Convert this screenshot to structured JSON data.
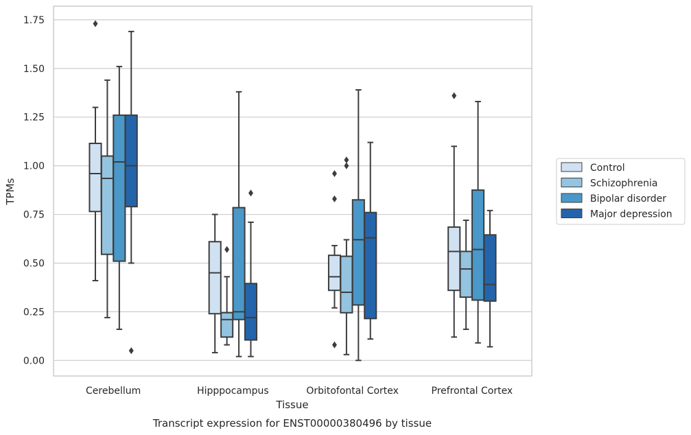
{
  "chart_data": {
    "type": "box",
    "xlabel": "Tissue",
    "ylabel": "TPMs",
    "caption": "Transcript expression for ENST00000380496 by tissue",
    "ylim": [
      -0.08,
      1.82
    ],
    "yticks": [
      0.0,
      0.25,
      0.5,
      0.75,
      1.0,
      1.25,
      1.5,
      1.75
    ],
    "ytick_labels": [
      "0.00",
      "0.25",
      "0.50",
      "0.75",
      "1.00",
      "1.25",
      "1.50",
      "1.75"
    ],
    "grid": "horizontal",
    "legend_position": "right",
    "categories": [
      "Cerebellum",
      "Hipppocampus",
      "Orbitofontal Cortex",
      "Prefrontal Cortex"
    ],
    "series": [
      {
        "name": "Control",
        "color": "#d0e1f2",
        "boxes": [
          {
            "whislo": 0.41,
            "q1": 0.765,
            "med": 0.96,
            "q3": 1.115,
            "whishi": 1.3,
            "fliers": [
              1.73
            ]
          },
          {
            "whislo": 0.04,
            "q1": 0.24,
            "med": 0.45,
            "q3": 0.61,
            "whishi": 0.75,
            "fliers": []
          },
          {
            "whislo": 0.27,
            "q1": 0.36,
            "med": 0.43,
            "q3": 0.54,
            "whishi": 0.59,
            "fliers": [
              0.96,
              0.83,
              0.08
            ]
          },
          {
            "whislo": 0.12,
            "q1": 0.36,
            "med": 0.56,
            "q3": 0.685,
            "whishi": 1.1,
            "fliers": [
              1.36
            ]
          }
        ]
      },
      {
        "name": "Schizophrenia",
        "color": "#94c4df",
        "boxes": [
          {
            "whislo": 0.22,
            "q1": 0.545,
            "med": 0.935,
            "q3": 1.05,
            "whishi": 1.44,
            "fliers": []
          },
          {
            "whislo": 0.08,
            "q1": 0.12,
            "med": 0.21,
            "q3": 0.245,
            "whishi": 0.43,
            "fliers": [
              0.57
            ]
          },
          {
            "whislo": 0.03,
            "q1": 0.245,
            "med": 0.35,
            "q3": 0.535,
            "whishi": 0.62,
            "fliers": [
              1.03,
              1.0
            ]
          },
          {
            "whislo": 0.16,
            "q1": 0.325,
            "med": 0.47,
            "q3": 0.56,
            "whishi": 0.72,
            "fliers": []
          }
        ]
      },
      {
        "name": "Bipolar disorder",
        "color": "#4a98c9",
        "boxes": [
          {
            "whislo": 0.16,
            "q1": 0.51,
            "med": 1.02,
            "q3": 1.26,
            "whishi": 1.51,
            "fliers": []
          },
          {
            "whislo": 0.02,
            "q1": 0.21,
            "med": 0.25,
            "q3": 0.785,
            "whishi": 1.38,
            "fliers": []
          },
          {
            "whislo": 0.0,
            "q1": 0.285,
            "med": 0.62,
            "q3": 0.825,
            "whishi": 1.39,
            "fliers": []
          },
          {
            "whislo": 0.09,
            "q1": 0.31,
            "med": 0.57,
            "q3": 0.875,
            "whishi": 1.33,
            "fliers": []
          }
        ]
      },
      {
        "name": "Major depression",
        "color": "#2464ab",
        "boxes": [
          {
            "whislo": 0.5,
            "q1": 0.79,
            "med": 1.0,
            "q3": 1.26,
            "whishi": 1.69,
            "fliers": [
              0.05
            ]
          },
          {
            "whislo": 0.02,
            "q1": 0.105,
            "med": 0.22,
            "q3": 0.395,
            "whishi": 0.71,
            "fliers": [
              0.86
            ]
          },
          {
            "whislo": 0.11,
            "q1": 0.215,
            "med": 0.63,
            "q3": 0.76,
            "whishi": 1.12,
            "fliers": []
          },
          {
            "whislo": 0.07,
            "q1": 0.305,
            "med": 0.39,
            "q3": 0.645,
            "whishi": 0.77,
            "fliers": []
          }
        ]
      }
    ]
  }
}
